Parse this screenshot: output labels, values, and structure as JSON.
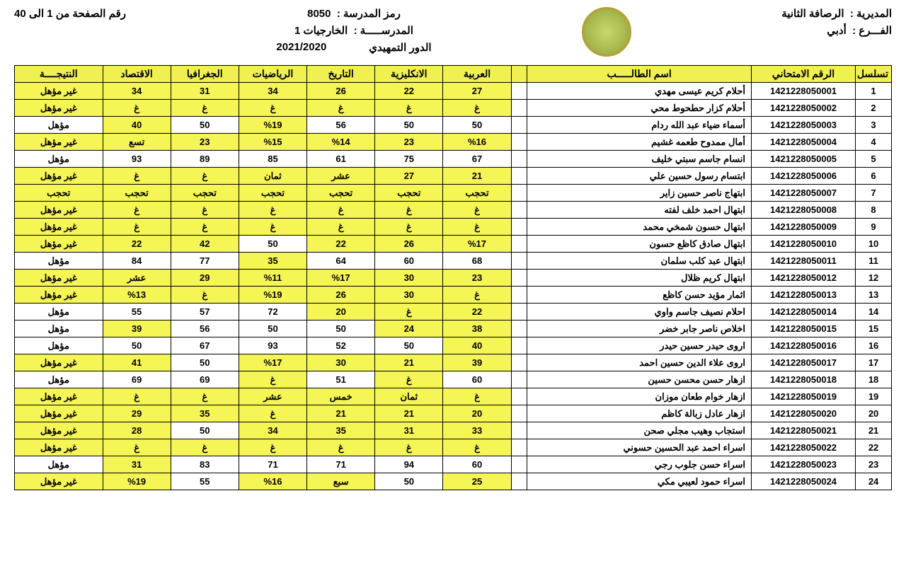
{
  "header": {
    "directorate_lbl": "المديرية :",
    "directorate_val": "الرصافة الثانية",
    "branch_lbl": "الفـــرع :",
    "branch_val": "أدبي",
    "code_lbl": "رمز المدرسة :",
    "code_val": "8050",
    "school_lbl": "المدرســـــة :",
    "school_val": "الخارجيات 1",
    "round_lbl": "الدور التمهيدي",
    "year": "2021/2020",
    "page_lbl": "رقم الصفحة من 1 الى 40"
  },
  "columns": {
    "seq": "تسلسل",
    "exam_no": "الرقم الامتحاني",
    "name": "اسم الطالـــــب",
    "arabic": "العربية",
    "english": "الانكليزية",
    "history": "التاريخ",
    "math": "الرياضيات",
    "geography": "الجغرافيا",
    "economics": "الاقتصاد",
    "result": "النتيجــــة"
  },
  "hl_color": "#f5f555",
  "rows": [
    {
      "seq": 1,
      "exam": "1421228050001",
      "name": "أحلام كريم عيسى مهدي",
      "ar": {
        "v": "27",
        "h": 1
      },
      "en": {
        "v": "22",
        "h": 1
      },
      "hi": {
        "v": "26",
        "h": 1
      },
      "ma": {
        "v": "34",
        "h": 1
      },
      "ge": {
        "v": "31",
        "h": 1
      },
      "ec": {
        "v": "34",
        "h": 1
      },
      "res": {
        "v": "غير مؤهل",
        "h": 1
      }
    },
    {
      "seq": 2,
      "exam": "1421228050002",
      "name": "أحلام كزار حطحوط محي",
      "ar": {
        "v": "غ",
        "h": 1
      },
      "en": {
        "v": "غ",
        "h": 1
      },
      "hi": {
        "v": "غ",
        "h": 1
      },
      "ma": {
        "v": "غ",
        "h": 1
      },
      "ge": {
        "v": "غ",
        "h": 1
      },
      "ec": {
        "v": "غ",
        "h": 1
      },
      "res": {
        "v": "غير مؤهل",
        "h": 1
      }
    },
    {
      "seq": 3,
      "exam": "1421228050003",
      "name": "أسماء ضياء عبد الله ردام",
      "ar": {
        "v": "50",
        "h": 0
      },
      "en": {
        "v": "50",
        "h": 0
      },
      "hi": {
        "v": "56",
        "h": 0
      },
      "ma": {
        "v": "%19",
        "h": 1
      },
      "ge": {
        "v": "50",
        "h": 0
      },
      "ec": {
        "v": "40",
        "h": 1
      },
      "res": {
        "v": "مؤهل",
        "h": 0
      }
    },
    {
      "seq": 4,
      "exam": "1421228050004",
      "name": "أمال ممدوح طعمه غشيم",
      "ar": {
        "v": "%16",
        "h": 1
      },
      "en": {
        "v": "23",
        "h": 1
      },
      "hi": {
        "v": "%14",
        "h": 1
      },
      "ma": {
        "v": "%15",
        "h": 1
      },
      "ge": {
        "v": "23",
        "h": 1
      },
      "ec": {
        "v": "تسع",
        "h": 1
      },
      "res": {
        "v": "غير مؤهل",
        "h": 1
      }
    },
    {
      "seq": 5,
      "exam": "1421228050005",
      "name": "انسام جاسم سبتي خليف",
      "ar": {
        "v": "67",
        "h": 0
      },
      "en": {
        "v": "75",
        "h": 0
      },
      "hi": {
        "v": "61",
        "h": 0
      },
      "ma": {
        "v": "85",
        "h": 0
      },
      "ge": {
        "v": "89",
        "h": 0
      },
      "ec": {
        "v": "93",
        "h": 0
      },
      "res": {
        "v": "مؤهل",
        "h": 0
      }
    },
    {
      "seq": 6,
      "exam": "1421228050006",
      "name": "ابتسام رسول حسين علي",
      "ar": {
        "v": "21",
        "h": 1
      },
      "en": {
        "v": "27",
        "h": 1
      },
      "hi": {
        "v": "عشر",
        "h": 1
      },
      "ma": {
        "v": "ثمان",
        "h": 1
      },
      "ge": {
        "v": "غ",
        "h": 1
      },
      "ec": {
        "v": "غ",
        "h": 1
      },
      "res": {
        "v": "غير مؤهل",
        "h": 1
      }
    },
    {
      "seq": 7,
      "exam": "1421228050007",
      "name": "ابتهاج ناصر حسين زاير",
      "ar": {
        "v": "تحجب",
        "h": 1
      },
      "en": {
        "v": "تحجب",
        "h": 1
      },
      "hi": {
        "v": "تحجب",
        "h": 1
      },
      "ma": {
        "v": "تحجب",
        "h": 1
      },
      "ge": {
        "v": "تحجب",
        "h": 1
      },
      "ec": {
        "v": "تحجب",
        "h": 1
      },
      "res": {
        "v": "تحجب",
        "h": 1
      }
    },
    {
      "seq": 8,
      "exam": "1421228050008",
      "name": "ابتهال احمد خلف لفته",
      "ar": {
        "v": "غ",
        "h": 1
      },
      "en": {
        "v": "غ",
        "h": 1
      },
      "hi": {
        "v": "غ",
        "h": 1
      },
      "ma": {
        "v": "غ",
        "h": 1
      },
      "ge": {
        "v": "غ",
        "h": 1
      },
      "ec": {
        "v": "غ",
        "h": 1
      },
      "res": {
        "v": "غير مؤهل",
        "h": 1
      }
    },
    {
      "seq": 9,
      "exam": "1421228050009",
      "name": "ابتهال حسون شمخي محمد",
      "ar": {
        "v": "غ",
        "h": 1
      },
      "en": {
        "v": "غ",
        "h": 1
      },
      "hi": {
        "v": "غ",
        "h": 1
      },
      "ma": {
        "v": "غ",
        "h": 1
      },
      "ge": {
        "v": "غ",
        "h": 1
      },
      "ec": {
        "v": "غ",
        "h": 1
      },
      "res": {
        "v": "غير مؤهل",
        "h": 1
      }
    },
    {
      "seq": 10,
      "exam": "1421228050010",
      "name": "ابتهال صادق كاظع حسون",
      "ar": {
        "v": "%17",
        "h": 1
      },
      "en": {
        "v": "26",
        "h": 1
      },
      "hi": {
        "v": "22",
        "h": 1
      },
      "ma": {
        "v": "50",
        "h": 0
      },
      "ge": {
        "v": "42",
        "h": 1
      },
      "ec": {
        "v": "22",
        "h": 1
      },
      "res": {
        "v": "غير مؤهل",
        "h": 1
      }
    },
    {
      "seq": 11,
      "exam": "1421228050011",
      "name": "ابتهال عبد كلب سلمان",
      "ar": {
        "v": "68",
        "h": 0
      },
      "en": {
        "v": "60",
        "h": 0
      },
      "hi": {
        "v": "64",
        "h": 0
      },
      "ma": {
        "v": "35",
        "h": 1
      },
      "ge": {
        "v": "77",
        "h": 0
      },
      "ec": {
        "v": "84",
        "h": 0
      },
      "res": {
        "v": "مؤهل",
        "h": 0
      }
    },
    {
      "seq": 12,
      "exam": "1421228050012",
      "name": "ابتهال كريم ظلال",
      "ar": {
        "v": "23",
        "h": 1
      },
      "en": {
        "v": "30",
        "h": 1
      },
      "hi": {
        "v": "%17",
        "h": 1
      },
      "ma": {
        "v": "%11",
        "h": 1
      },
      "ge": {
        "v": "29",
        "h": 1
      },
      "ec": {
        "v": "عشر",
        "h": 1
      },
      "res": {
        "v": "غير مؤهل",
        "h": 1
      }
    },
    {
      "seq": 13,
      "exam": "1421228050013",
      "name": "اثمار مؤيد حسن كاظع",
      "ar": {
        "v": "غ",
        "h": 1
      },
      "en": {
        "v": "30",
        "h": 1
      },
      "hi": {
        "v": "26",
        "h": 1
      },
      "ma": {
        "v": "%19",
        "h": 1
      },
      "ge": {
        "v": "غ",
        "h": 1
      },
      "ec": {
        "v": "%13",
        "h": 1
      },
      "res": {
        "v": "غير مؤهل",
        "h": 1
      }
    },
    {
      "seq": 14,
      "exam": "1421228050014",
      "name": "احلام نصيف جاسم واوي",
      "ar": {
        "v": "22",
        "h": 1
      },
      "en": {
        "v": "غ",
        "h": 1
      },
      "hi": {
        "v": "20",
        "h": 1
      },
      "ma": {
        "v": "72",
        "h": 0
      },
      "ge": {
        "v": "57",
        "h": 0
      },
      "ec": {
        "v": "55",
        "h": 0
      },
      "res": {
        "v": "مؤهل",
        "h": 0
      }
    },
    {
      "seq": 15,
      "exam": "1421228050015",
      "name": "اخلاص ناصر جابر خضر",
      "ar": {
        "v": "38",
        "h": 1
      },
      "en": {
        "v": "24",
        "h": 1
      },
      "hi": {
        "v": "50",
        "h": 0
      },
      "ma": {
        "v": "50",
        "h": 0
      },
      "ge": {
        "v": "56",
        "h": 0
      },
      "ec": {
        "v": "39",
        "h": 1
      },
      "res": {
        "v": "مؤهل",
        "h": 0
      }
    },
    {
      "seq": 16,
      "exam": "1421228050016",
      "name": "اروى حيدر حسين حيدر",
      "ar": {
        "v": "40",
        "h": 1
      },
      "en": {
        "v": "50",
        "h": 0
      },
      "hi": {
        "v": "52",
        "h": 0
      },
      "ma": {
        "v": "93",
        "h": 0
      },
      "ge": {
        "v": "67",
        "h": 0
      },
      "ec": {
        "v": "50",
        "h": 0
      },
      "res": {
        "v": "مؤهل",
        "h": 0
      }
    },
    {
      "seq": 17,
      "exam": "1421228050017",
      "name": "اروى علاء الدين حسين احمد",
      "ar": {
        "v": "39",
        "h": 1
      },
      "en": {
        "v": "21",
        "h": 1
      },
      "hi": {
        "v": "30",
        "h": 1
      },
      "ma": {
        "v": "%17",
        "h": 1
      },
      "ge": {
        "v": "50",
        "h": 0
      },
      "ec": {
        "v": "41",
        "h": 1
      },
      "res": {
        "v": "غير مؤهل",
        "h": 1
      }
    },
    {
      "seq": 18,
      "exam": "1421228050018",
      "name": "ازهار حسن محسن حسين",
      "ar": {
        "v": "60",
        "h": 0
      },
      "en": {
        "v": "غ",
        "h": 1
      },
      "hi": {
        "v": "51",
        "h": 0
      },
      "ma": {
        "v": "غ",
        "h": 1
      },
      "ge": {
        "v": "69",
        "h": 0
      },
      "ec": {
        "v": "69",
        "h": 0
      },
      "res": {
        "v": "مؤهل",
        "h": 0
      }
    },
    {
      "seq": 19,
      "exam": "1421228050019",
      "name": "ازهار خوام طعان موزان",
      "ar": {
        "v": "غ",
        "h": 1
      },
      "en": {
        "v": "ثمان",
        "h": 1
      },
      "hi": {
        "v": "خمس",
        "h": 1
      },
      "ma": {
        "v": "عشر",
        "h": 1
      },
      "ge": {
        "v": "غ",
        "h": 1
      },
      "ec": {
        "v": "غ",
        "h": 1
      },
      "res": {
        "v": "غير مؤهل",
        "h": 1
      }
    },
    {
      "seq": 20,
      "exam": "1421228050020",
      "name": "ازهار عادل زبالة كاظم",
      "ar": {
        "v": "20",
        "h": 1
      },
      "en": {
        "v": "21",
        "h": 1
      },
      "hi": {
        "v": "21",
        "h": 1
      },
      "ma": {
        "v": "غ",
        "h": 1
      },
      "ge": {
        "v": "35",
        "h": 1
      },
      "ec": {
        "v": "29",
        "h": 1
      },
      "res": {
        "v": "غير مؤهل",
        "h": 1
      }
    },
    {
      "seq": 21,
      "exam": "1421228050021",
      "name": "استجاب وهيب مجلي صحن",
      "ar": {
        "v": "33",
        "h": 1
      },
      "en": {
        "v": "31",
        "h": 1
      },
      "hi": {
        "v": "35",
        "h": 1
      },
      "ma": {
        "v": "34",
        "h": 1
      },
      "ge": {
        "v": "50",
        "h": 0
      },
      "ec": {
        "v": "28",
        "h": 1
      },
      "res": {
        "v": "غير مؤهل",
        "h": 1
      }
    },
    {
      "seq": 22,
      "exam": "1421228050022",
      "name": "اسراء احمد عبد الحسين حسوني",
      "ar": {
        "v": "غ",
        "h": 1
      },
      "en": {
        "v": "غ",
        "h": 1
      },
      "hi": {
        "v": "غ",
        "h": 1
      },
      "ma": {
        "v": "غ",
        "h": 1
      },
      "ge": {
        "v": "غ",
        "h": 1
      },
      "ec": {
        "v": "غ",
        "h": 1
      },
      "res": {
        "v": "غير مؤهل",
        "h": 1
      }
    },
    {
      "seq": 23,
      "exam": "1421228050023",
      "name": "اسراء حسن جلوب رجي",
      "ar": {
        "v": "60",
        "h": 0
      },
      "en": {
        "v": "94",
        "h": 0
      },
      "hi": {
        "v": "71",
        "h": 0
      },
      "ma": {
        "v": "71",
        "h": 0
      },
      "ge": {
        "v": "83",
        "h": 0
      },
      "ec": {
        "v": "31",
        "h": 1
      },
      "res": {
        "v": "مؤهل",
        "h": 0
      }
    },
    {
      "seq": 24,
      "exam": "1421228050024",
      "name": "اسراء حمود لعيبي مكي",
      "ar": {
        "v": "25",
        "h": 1
      },
      "en": {
        "v": "50",
        "h": 0
      },
      "hi": {
        "v": "سبع",
        "h": 1
      },
      "ma": {
        "v": "%16",
        "h": 1
      },
      "ge": {
        "v": "55",
        "h": 0
      },
      "ec": {
        "v": "%19",
        "h": 1
      },
      "res": {
        "v": "غير مؤهل",
        "h": 1
      }
    }
  ]
}
